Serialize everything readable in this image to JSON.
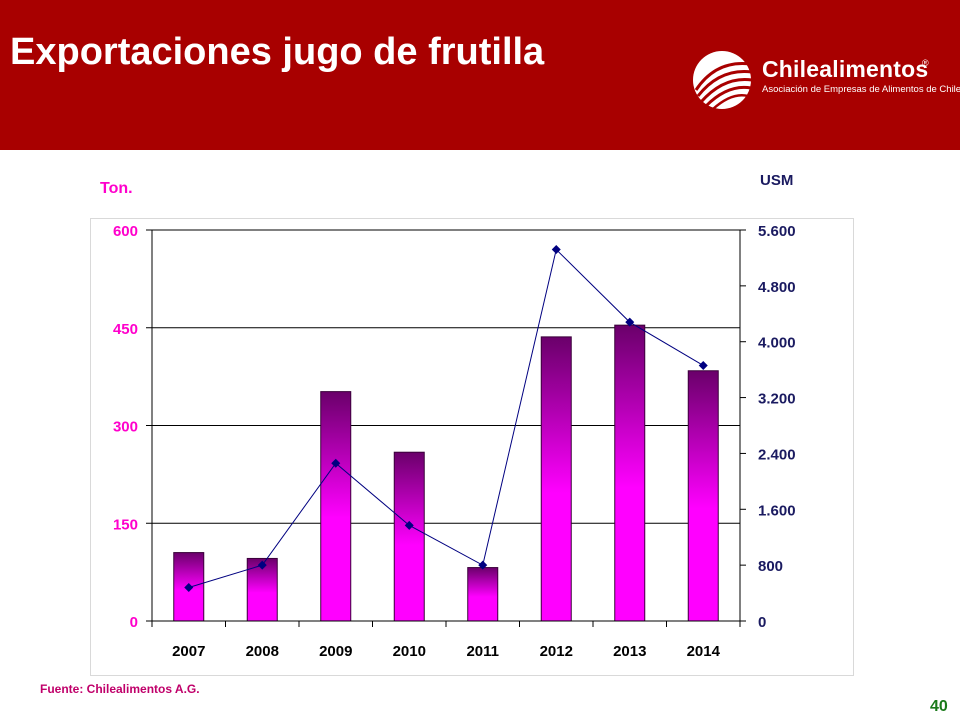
{
  "header": {
    "title": "Exportaciones jugo de frutilla",
    "logo_name": "Chilealimentos",
    "logo_registered": "®",
    "logo_subtitle": "Asociación de Empresas de Alimentos de Chile",
    "background_color": "#a80000"
  },
  "footer": {
    "source": "Fuente: Chilealimentos A.G.",
    "page_number": "40"
  },
  "chart_data": {
    "type": "bar",
    "categories": [
      "2007",
      "2008",
      "2009",
      "2010",
      "2011",
      "2012",
      "2013",
      "2014"
    ],
    "y_left_label": "Ton.",
    "y_right_label": "USM",
    "ylim_left": [
      0,
      600
    ],
    "ylim_right": [
      0,
      5600
    ],
    "y_left_ticks": [
      0,
      150,
      300,
      450,
      600
    ],
    "y_left_tick_labels": [
      "0",
      "150",
      "300",
      "450",
      "600"
    ],
    "y_right_ticks": [
      0,
      800,
      1600,
      2400,
      3200,
      4000,
      4800,
      5600
    ],
    "y_right_tick_labels": [
      "0",
      "800",
      "1.600",
      "2.400",
      "3.200",
      "4.000",
      "4.800",
      "5.600"
    ],
    "grid": true,
    "series": [
      {
        "axis": "left",
        "type": "bar",
        "values": [
          105,
          96,
          352,
          259,
          82,
          436,
          454,
          384
        ],
        "color_bright": "#ff00ff",
        "color_dark": "#6a006a"
      },
      {
        "axis": "right",
        "type": "line",
        "values": [
          480,
          800,
          2260,
          1370,
          800,
          5320,
          4280,
          3660
        ],
        "color": "#000080"
      }
    ],
    "colors": {
      "left_axis_text": "#ff00cc",
      "right_axis_text": "#1a1a60",
      "category_text": "#000000",
      "grid": "#000000"
    }
  }
}
